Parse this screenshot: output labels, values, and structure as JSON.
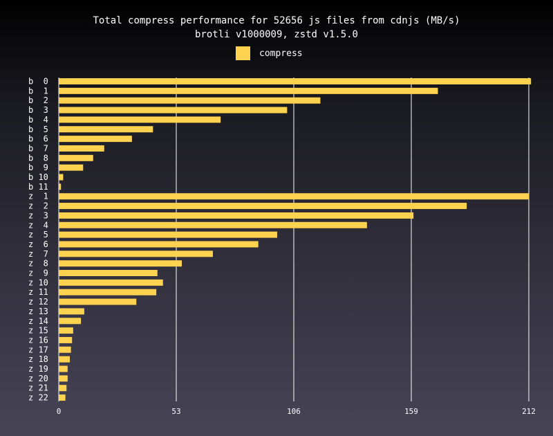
{
  "chart_data": {
    "type": "bar",
    "orientation": "horizontal",
    "title": "Total compress performance for 52656 js files from cdnjs (MB/s)",
    "subtitle": "brotli v1000009, zstd v1.5.0",
    "series": [
      {
        "name": "compress",
        "color": "#ffd34f",
        "values": [
          213,
          171,
          118,
          103,
          73,
          42.5,
          33,
          20.5,
          15.5,
          11,
          2,
          1,
          212,
          184,
          160,
          139,
          98.5,
          90,
          69.5,
          55.5,
          44.5,
          47,
          44,
          35,
          11.5,
          10,
          6.5,
          6,
          5.5,
          5,
          4,
          4,
          3.5,
          3
        ]
      }
    ],
    "categories": [
      "b  0",
      "b  1",
      "b  2",
      "b  3",
      "b  4",
      "b  5",
      "b  6",
      "b  7",
      "b  8",
      "b  9",
      "b 10",
      "b 11",
      "z  1",
      "z  2",
      "z  3",
      "z  4",
      "z  5",
      "z  6",
      "z  7",
      "z  8",
      "z  9",
      "z 10",
      "z 11",
      "z 12",
      "z 13",
      "z 14",
      "z 15",
      "z 16",
      "z 17",
      "z 18",
      "z 19",
      "z 20",
      "z 21",
      "z 22"
    ],
    "xticks": [
      0,
      53,
      106,
      159,
      212
    ],
    "xlim": [
      0,
      212
    ],
    "grid": true,
    "legend": "top-center",
    "xlabel": "",
    "ylabel": ""
  }
}
